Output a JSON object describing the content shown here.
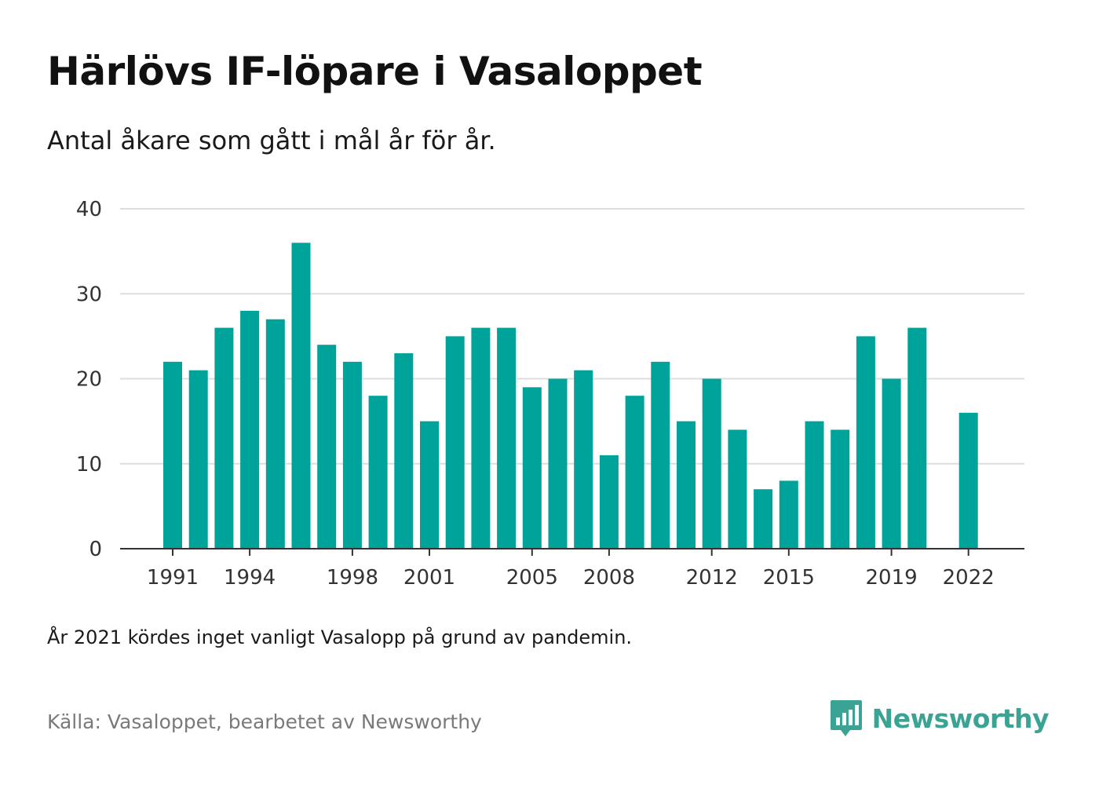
{
  "header": {
    "title": "Härlövs IF-löpare i Vasaloppet",
    "subtitle": "Antal åkare som gått i mål år för år."
  },
  "footer": {
    "note": "År 2021 kördes inget vanligt Vasalopp på grund av pandemin.",
    "source": "Källa: Vasaloppet, bearbetet av Newsworthy",
    "brand": "Newsworthy"
  },
  "colors": {
    "bar": "#00a39a",
    "grid": "#dddddd",
    "axis": "#333333",
    "brand": "#3aa393"
  },
  "icons": {
    "brand_logo": "bar-chart-speech-bubble-icon"
  },
  "chart_data": {
    "type": "bar",
    "x": [
      1991,
      1992,
      1993,
      1994,
      1995,
      1996,
      1997,
      1998,
      1999,
      2000,
      2001,
      2002,
      2003,
      2004,
      2005,
      2006,
      2007,
      2008,
      2009,
      2010,
      2011,
      2012,
      2013,
      2014,
      2015,
      2016,
      2017,
      2018,
      2019,
      2020,
      2021,
      2022
    ],
    "values": [
      22,
      21,
      26,
      28,
      27,
      36,
      24,
      22,
      18,
      23,
      15,
      25,
      26,
      26,
      19,
      20,
      21,
      11,
      18,
      22,
      15,
      20,
      14,
      7,
      8,
      15,
      14,
      25,
      20,
      26,
      null,
      16
    ],
    "x_ticks": [
      "1991",
      "1994",
      "1998",
      "2001",
      "2005",
      "2008",
      "2012",
      "2015",
      "2019",
      "2022"
    ],
    "y_ticks": [
      0,
      10,
      20,
      30,
      40
    ],
    "ylim": [
      0,
      40
    ],
    "grid": true,
    "legend": "none"
  }
}
